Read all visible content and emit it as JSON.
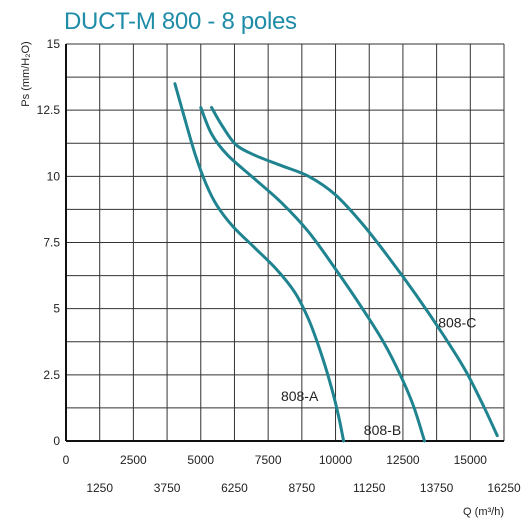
{
  "title": "DUCT-M 800 - 8 poles",
  "chart_data": {
    "type": "line",
    "title": "DUCT-M 800 - 8 poles",
    "xlabel": "Q (m³/h)",
    "ylabel": "Ps (mm/H₂O)",
    "xlim": [
      0,
      16250
    ],
    "ylim": [
      0,
      15
    ],
    "x_ticks_top": [
      "0",
      "2500",
      "5000",
      "7500",
      "10000",
      "12500",
      "15000"
    ],
    "x_ticks_bottom": [
      "1250",
      "3750",
      "6250",
      "8750",
      "11250",
      "13750",
      "16250"
    ],
    "y_ticks": [
      "0",
      "2.5",
      "5",
      "7.5",
      "10",
      "12.5",
      "15"
    ],
    "grid": true,
    "series": [
      {
        "name": "808-A",
        "color": "#1f8490",
        "x": [
          4040,
          4400,
          4800,
          5200,
          5600,
          6200,
          7000,
          7800,
          8500,
          9000,
          9400,
          9800,
          10100,
          10300
        ],
        "y": [
          13.5,
          12.2,
          10.8,
          9.7,
          8.9,
          8.1,
          7.3,
          6.5,
          5.6,
          4.6,
          3.5,
          2.2,
          1.0,
          0.0
        ]
      },
      {
        "name": "808-B",
        "color": "#1f8490",
        "x": [
          5000,
          5400,
          6000,
          7000,
          8000,
          9000,
          10000,
          11000,
          11800,
          12400,
          12900,
          13300
        ],
        "y": [
          12.6,
          11.6,
          10.8,
          9.9,
          9.0,
          7.9,
          6.5,
          5.0,
          3.7,
          2.5,
          1.3,
          0.0
        ]
      },
      {
        "name": "808-C",
        "color": "#1f8490",
        "x": [
          5400,
          5800,
          6300,
          7000,
          8000,
          9000,
          10000,
          11000,
          12000,
          13000,
          14000,
          14800,
          15500,
          16000
        ],
        "y": [
          12.6,
          11.9,
          11.2,
          10.8,
          10.4,
          10.0,
          9.3,
          8.2,
          6.9,
          5.5,
          4.0,
          2.7,
          1.3,
          0.2
        ]
      }
    ]
  }
}
